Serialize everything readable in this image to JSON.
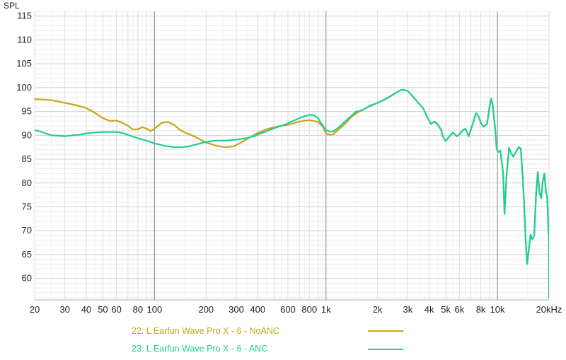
{
  "chart_data": {
    "type": "line",
    "ylabel": "SPL",
    "xscale": "log",
    "xlim": [
      20,
      20000
    ],
    "ylim": [
      55.5,
      116
    ],
    "grid": true,
    "y_ticks": [
      115,
      110,
      105,
      100,
      95,
      90,
      85,
      80,
      75,
      70,
      65,
      60
    ],
    "x_ticks": [
      {
        "value": 20,
        "label": "20"
      },
      {
        "value": 30,
        "label": "30"
      },
      {
        "value": 40,
        "label": "40"
      },
      {
        "value": 50,
        "label": "50"
      },
      {
        "value": 60,
        "label": "60"
      },
      {
        "value": 80,
        "label": "80"
      },
      {
        "value": 100,
        "label": "100"
      },
      {
        "value": 200,
        "label": "200"
      },
      {
        "value": 300,
        "label": "300"
      },
      {
        "value": 400,
        "label": "400"
      },
      {
        "value": 600,
        "label": "600"
      },
      {
        "value": 800,
        "label": "800"
      },
      {
        "value": 1000,
        "label": "1k"
      },
      {
        "value": 2000,
        "label": "2k"
      },
      {
        "value": 3000,
        "label": "3k"
      },
      {
        "value": 4000,
        "label": "4k"
      },
      {
        "value": 5000,
        "label": "5k"
      },
      {
        "value": 6000,
        "label": "6k"
      },
      {
        "value": 8000,
        "label": "8k"
      },
      {
        "value": 10000,
        "label": "10k"
      },
      {
        "value": 20000,
        "label": "20kHz"
      }
    ],
    "series": [
      {
        "name": "22: L Earfun Wave Pro X - 6 - NoANC",
        "color": "#c9a318",
        "points": [
          [
            20,
            97.6
          ],
          [
            25,
            97.4
          ],
          [
            30,
            96.8
          ],
          [
            35,
            96.3
          ],
          [
            40,
            95.7
          ],
          [
            45,
            94.7
          ],
          [
            50,
            93.6
          ],
          [
            55,
            93.0
          ],
          [
            60,
            93.1
          ],
          [
            65,
            92.6
          ],
          [
            70,
            92.0
          ],
          [
            75,
            91.2
          ],
          [
            80,
            91.3
          ],
          [
            85,
            91.7
          ],
          [
            90,
            91.4
          ],
          [
            95,
            90.9
          ],
          [
            100,
            91.4
          ],
          [
            110,
            92.6
          ],
          [
            120,
            92.8
          ],
          [
            130,
            92.2
          ],
          [
            140,
            91.2
          ],
          [
            150,
            90.6
          ],
          [
            170,
            89.8
          ],
          [
            200,
            88.5
          ],
          [
            230,
            87.8
          ],
          [
            260,
            87.5
          ],
          [
            290,
            87.7
          ],
          [
            320,
            88.5
          ],
          [
            360,
            89.6
          ],
          [
            400,
            90.5
          ],
          [
            460,
            91.4
          ],
          [
            530,
            91.9
          ],
          [
            600,
            92.2
          ],
          [
            700,
            92.9
          ],
          [
            800,
            93.2
          ],
          [
            900,
            92.8
          ],
          [
            960,
            91.8
          ],
          [
            1000,
            90.4
          ],
          [
            1050,
            90.1
          ],
          [
            1100,
            90.2
          ],
          [
            1200,
            91.4
          ],
          [
            1300,
            92.5
          ],
          [
            1400,
            93.8
          ],
          [
            1500,
            94.6
          ],
          [
            1600,
            95.2
          ],
          [
            1800,
            96.1
          ],
          [
            2000,
            96.8
          ],
          [
            2200,
            97.5
          ],
          [
            2400,
            98.3
          ],
          [
            2700,
            99.4
          ],
          [
            2800,
            99.6
          ],
          [
            3000,
            99.3
          ],
          [
            3200,
            98.2
          ],
          [
            3500,
            96.6
          ],
          [
            3700,
            95.6
          ],
          [
            3900,
            93.8
          ],
          [
            4100,
            92.4
          ],
          [
            4300,
            92.9
          ],
          [
            4500,
            92.2
          ],
          [
            4700,
            91.1
          ],
          [
            4800,
            89.8
          ],
          [
            5000,
            88.8
          ],
          [
            5200,
            89.6
          ],
          [
            5500,
            90.6
          ],
          [
            5800,
            89.8
          ],
          [
            6000,
            90.2
          ],
          [
            6300,
            91.1
          ],
          [
            6500,
            91.4
          ],
          [
            6800,
            89.8
          ],
          [
            7000,
            91.2
          ],
          [
            7300,
            93.2
          ],
          [
            7500,
            94.7
          ],
          [
            7800,
            93.8
          ],
          [
            8000,
            92.6
          ],
          [
            8300,
            91.8
          ],
          [
            8700,
            92.4
          ],
          [
            9000,
            96.0
          ],
          [
            9200,
            97.7
          ],
          [
            9400,
            96.2
          ],
          [
            9700,
            91.5
          ],
          [
            9900,
            87.2
          ],
          [
            10100,
            86.5
          ],
          [
            10400,
            86.8
          ],
          [
            10800,
            82.0
          ],
          [
            11000,
            73.5
          ],
          [
            11300,
            81.5
          ],
          [
            11700,
            87.4
          ],
          [
            12000,
            86.3
          ],
          [
            12400,
            85.5
          ],
          [
            12800,
            86.5
          ],
          [
            13300,
            87.5
          ],
          [
            13700,
            87.2
          ],
          [
            14000,
            82.0
          ],
          [
            14300,
            76.0
          ],
          [
            14600,
            68.5
          ],
          [
            14900,
            63.0
          ],
          [
            15300,
            66.5
          ],
          [
            15600,
            69.2
          ],
          [
            16000,
            68.2
          ],
          [
            16400,
            69.0
          ],
          [
            16800,
            77.5
          ],
          [
            17200,
            82.3
          ],
          [
            17600,
            78.0
          ],
          [
            18000,
            76.8
          ],
          [
            18400,
            80.5
          ],
          [
            18800,
            82.0
          ],
          [
            19200,
            78.0
          ],
          [
            19500,
            77.2
          ],
          [
            19700,
            73.5
          ],
          [
            19850,
            69.5
          ],
          [
            19950,
            71.5
          ],
          [
            20000,
            56.0
          ]
        ]
      },
      {
        "name": "23: L Earfun Wave Pro X - 6 - ANC",
        "color": "#1ecf95",
        "points": [
          [
            20,
            91.1
          ],
          [
            22,
            90.7
          ],
          [
            25,
            90.0
          ],
          [
            28,
            89.9
          ],
          [
            30,
            89.8
          ],
          [
            33,
            90.0
          ],
          [
            36,
            90.1
          ],
          [
            40,
            90.4
          ],
          [
            45,
            90.6
          ],
          [
            50,
            90.7
          ],
          [
            55,
            90.7
          ],
          [
            60,
            90.7
          ],
          [
            65,
            90.5
          ],
          [
            70,
            90.1
          ],
          [
            80,
            89.4
          ],
          [
            90,
            88.9
          ],
          [
            100,
            88.3
          ],
          [
            115,
            87.8
          ],
          [
            130,
            87.5
          ],
          [
            145,
            87.5
          ],
          [
            160,
            87.7
          ],
          [
            180,
            88.2
          ],
          [
            200,
            88.6
          ],
          [
            230,
            88.9
          ],
          [
            260,
            88.9
          ],
          [
            300,
            89.1
          ],
          [
            340,
            89.4
          ],
          [
            380,
            89.8
          ],
          [
            430,
            90.6
          ],
          [
            500,
            91.5
          ],
          [
            580,
            92.3
          ],
          [
            650,
            93.1
          ],
          [
            720,
            93.8
          ],
          [
            800,
            94.3
          ],
          [
            850,
            94.2
          ],
          [
            900,
            93.6
          ],
          [
            950,
            92.2
          ],
          [
            1000,
            91.1
          ],
          [
            1050,
            90.8
          ],
          [
            1100,
            90.8
          ],
          [
            1200,
            91.8
          ],
          [
            1300,
            93.0
          ],
          [
            1400,
            94.0
          ],
          [
            1500,
            95.0
          ],
          [
            1600,
            95.1
          ],
          [
            1800,
            96.2
          ],
          [
            2000,
            96.8
          ],
          [
            2200,
            97.5
          ],
          [
            2400,
            98.3
          ],
          [
            2700,
            99.4
          ],
          [
            2800,
            99.6
          ],
          [
            3000,
            99.3
          ],
          [
            3200,
            98.2
          ],
          [
            3500,
            96.6
          ],
          [
            3700,
            95.6
          ],
          [
            3900,
            93.8
          ],
          [
            4100,
            92.4
          ],
          [
            4300,
            92.9
          ],
          [
            4500,
            92.2
          ],
          [
            4700,
            91.1
          ],
          [
            4800,
            89.8
          ],
          [
            5000,
            88.8
          ],
          [
            5200,
            89.6
          ],
          [
            5500,
            90.6
          ],
          [
            5800,
            89.8
          ],
          [
            6000,
            90.2
          ],
          [
            6300,
            91.1
          ],
          [
            6500,
            91.4
          ],
          [
            6800,
            89.8
          ],
          [
            7000,
            91.2
          ],
          [
            7300,
            93.2
          ],
          [
            7500,
            94.7
          ],
          [
            7800,
            93.8
          ],
          [
            8000,
            92.6
          ],
          [
            8300,
            91.8
          ],
          [
            8700,
            92.4
          ],
          [
            9000,
            96.0
          ],
          [
            9200,
            97.7
          ],
          [
            9400,
            96.2
          ],
          [
            9700,
            91.5
          ],
          [
            9900,
            87.2
          ],
          [
            10100,
            86.5
          ],
          [
            10400,
            86.8
          ],
          [
            10800,
            82.0
          ],
          [
            11000,
            73.5
          ],
          [
            11300,
            81.5
          ],
          [
            11700,
            87.4
          ],
          [
            12000,
            86.3
          ],
          [
            12400,
            85.5
          ],
          [
            12800,
            86.5
          ],
          [
            13300,
            87.5
          ],
          [
            13700,
            87.2
          ],
          [
            14000,
            82.0
          ],
          [
            14300,
            76.0
          ],
          [
            14600,
            68.5
          ],
          [
            14900,
            63.0
          ],
          [
            15300,
            66.5
          ],
          [
            15600,
            69.2
          ],
          [
            16000,
            68.2
          ],
          [
            16400,
            69.0
          ],
          [
            16800,
            77.5
          ],
          [
            17200,
            82.3
          ],
          [
            17600,
            78.0
          ],
          [
            18000,
            76.8
          ],
          [
            18400,
            80.5
          ],
          [
            18800,
            82.0
          ],
          [
            19200,
            78.0
          ],
          [
            19500,
            77.2
          ],
          [
            19700,
            73.5
          ],
          [
            19850,
            69.5
          ],
          [
            19950,
            71.5
          ],
          [
            20000,
            56.0
          ]
        ]
      }
    ]
  }
}
